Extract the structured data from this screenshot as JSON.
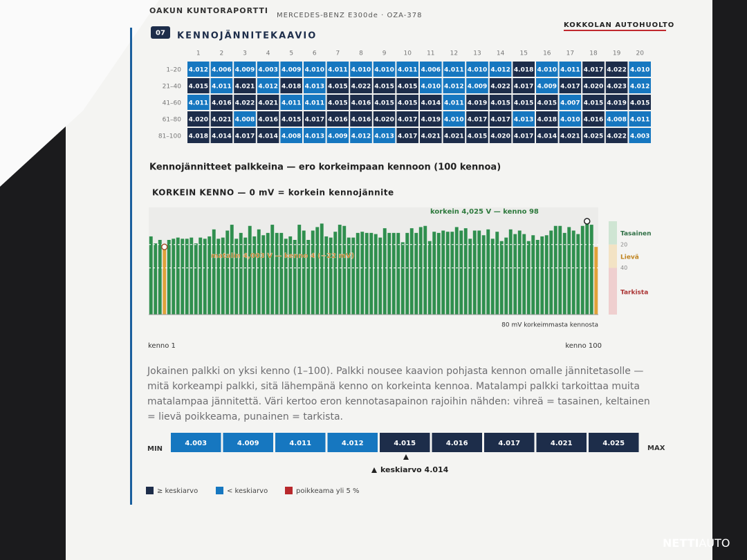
{
  "header": {
    "report": "OAKUN KUNTORAPORTTI",
    "vehicle": "MERCEDES-BENZ E300de · OZA-378",
    "workshop": "KOKKOLAN AUTOHUOLTO",
    "section_number": "07",
    "section_title": "KENNOJÄNNITEKAAVIO"
  },
  "table": {
    "columns": [
      1,
      2,
      3,
      4,
      5,
      6,
      7,
      8,
      9,
      10,
      11,
      12,
      13,
      14,
      15,
      16,
      17,
      18,
      19,
      20
    ],
    "row_labels": [
      "1–20",
      "21–40",
      "41–60",
      "61–80",
      "81–100"
    ],
    "rows": [
      [
        "4.012",
        "4.006",
        "4.009",
        "4.003",
        "4.009",
        "4.010",
        "4.011",
        "4.010",
        "4.010",
        "4.011",
        "4.006",
        "4.011",
        "4.010",
        "4.012",
        "4.018",
        "4.010",
        "4.011",
        "4.017",
        "4.022",
        "4.010"
      ],
      [
        "4.015",
        "4.011",
        "4.021",
        "4.012",
        "4.018",
        "4.013",
        "4.015",
        "4.022",
        "4.015",
        "4.015",
        "4.010",
        "4.012",
        "4.009",
        "4.022",
        "4.017",
        "4.009",
        "4.017",
        "4.020",
        "4.023",
        "4.012"
      ],
      [
        "4.011",
        "4.016",
        "4.022",
        "4.021",
        "4.011",
        "4.011",
        "4.015",
        "4.016",
        "4.015",
        "4.015",
        "4.014",
        "4.011",
        "4.019",
        "4.015",
        "4.015",
        "4.015",
        "4.007",
        "4.015",
        "4.019",
        "4.015"
      ],
      [
        "4.020",
        "4.021",
        "4.008",
        "4.016",
        "4.015",
        "4.017",
        "4.016",
        "4.016",
        "4.020",
        "4.017",
        "4.019",
        "4.010",
        "4.017",
        "4.017",
        "4.013",
        "4.018",
        "4.010",
        "4.016",
        "4.008",
        "4.011"
      ],
      [
        "4.018",
        "4.014",
        "4.017",
        "4.014",
        "4.008",
        "4.013",
        "4.009",
        "4.012",
        "4.013",
        "4.017",
        "4.021",
        "4.021",
        "4.015",
        "4.020",
        "4.017",
        "4.014",
        "4.021",
        "4.025",
        "4.022",
        "4.003"
      ]
    ]
  },
  "bar_chart": {
    "title": "Kennojännitteet palkkeina — ero korkeimpaan kennoon (100 kennoa)",
    "subtitle": "KORKEIN KENNO — 0 mV = korkein kennojännite",
    "highest_label": "korkein 4,025 V — kenno 98",
    "lowest_label": "matalin 4,003 V — kenno 4 (−22 mV)",
    "scale": {
      "value": 80,
      "label": "80 mV korkeimmasta kennosta"
    },
    "scale_ticks": [
      20,
      40
    ],
    "zones": [
      "Tasainen",
      "Lievä",
      "Tarkista"
    ],
    "first_label": "kenno 1",
    "last_label": "kenno 100"
  },
  "description": "Jokainen palkki on yksi kenno (1–100).  Palkki nousee kaavion pohjasta kennon omalle jännitetasolle — mitä korkeampi palkki, sitä lähempänä kenno on korkeinta kennoa. Matalampi palkki tarkoittaa muita matalampaa jännitettä. Väri kertoo eron kennotasapainon rajoihin nähden: vihreä = tasainen, keltainen = lievä poikkeama, punainen = tarkista.",
  "summary": {
    "min_label": "MIN",
    "max_label": "MAX",
    "values": [
      "4.003",
      "4.009",
      "4.011",
      "4.012",
      "4.015",
      "4.016",
      "4.017",
      "4.021",
      "4.025"
    ],
    "average_label": "keskiarvo",
    "average": "4.014"
  },
  "legend": [
    "≥ keskiarvo",
    "< keskiarvo",
    "poikkeama yli 5 %"
  ],
  "watermark": {
    "brand": "NETTI",
    "suffix": "AUTO"
  }
}
